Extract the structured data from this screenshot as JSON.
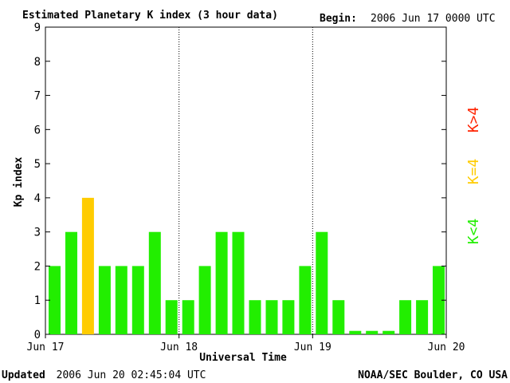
{
  "header": {
    "title": "Estimated Planetary K index (3 hour data)",
    "begin_label": "Begin:",
    "begin_value": "2006 Jun 17 0000 UTC"
  },
  "footer": {
    "updated_label": "Updated",
    "updated_value": "2006 Jun 20 02:45:04 UTC",
    "source": "NOAA/SEC Boulder, CO USA"
  },
  "legend": {
    "items": [
      {
        "label": "K<4",
        "color": "#22ee00"
      },
      {
        "label": "K=4",
        "color": "#ffcc00"
      },
      {
        "label": "K>4",
        "color": "#ff2200"
      }
    ]
  },
  "colors": {
    "low": "#22ee00",
    "equal4": "#ffcc00",
    "high": "#ff2200"
  },
  "chart_data": {
    "type": "bar",
    "xlabel": "Universal Time",
    "ylabel": "Kp index",
    "ylim": [
      0,
      9
    ],
    "yticks": [
      "0",
      "1",
      "2",
      "3",
      "4",
      "5",
      "6",
      "7",
      "8",
      "9"
    ],
    "xticks": [
      "Jun 17",
      "Jun 18",
      "Jun 19",
      "Jun 20"
    ],
    "day_dividers_after_interval": [
      8,
      16
    ],
    "bar_interval_hours": 3,
    "values": [
      2,
      3,
      4,
      2,
      2,
      2,
      3,
      1,
      1,
      2,
      3,
      3,
      1,
      1,
      1,
      2,
      3,
      1,
      0.1,
      0.1,
      0.1,
      1,
      1,
      2
    ],
    "grid": false
  }
}
